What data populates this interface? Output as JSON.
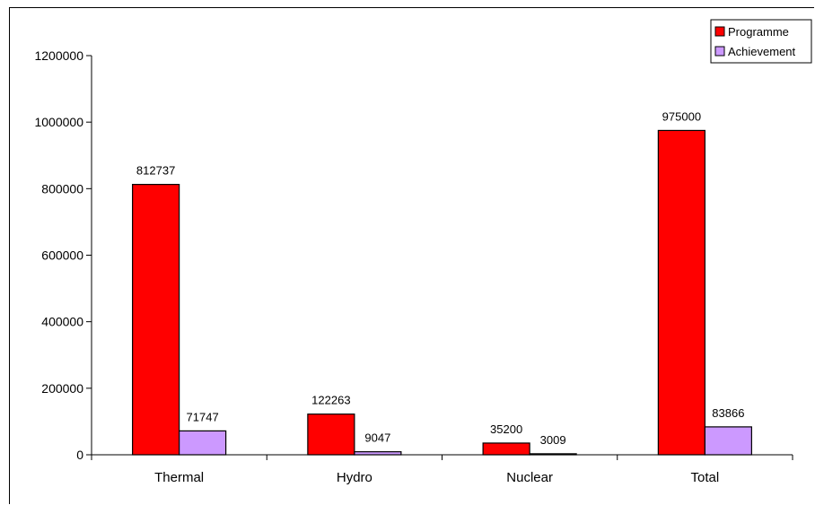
{
  "chart_data": {
    "type": "bar",
    "title": "",
    "xlabel": "",
    "ylabel": "",
    "categories": [
      "Thermal",
      "Hydro",
      "Nuclear",
      "Total"
    ],
    "series": [
      {
        "name": "Programme",
        "values": [
          812737,
          122263,
          35200,
          975000
        ],
        "color": "#ff0000"
      },
      {
        "name": "Achievement",
        "values": [
          71747,
          9047,
          3009,
          83866
        ],
        "color": "#cc99ff"
      }
    ],
    "ylim": [
      0,
      1200000
    ],
    "yticks": [
      0,
      200000,
      400000,
      600000,
      800000,
      1000000,
      1200000
    ],
    "grid": false,
    "legend": "top-right",
    "data_labels": true
  }
}
